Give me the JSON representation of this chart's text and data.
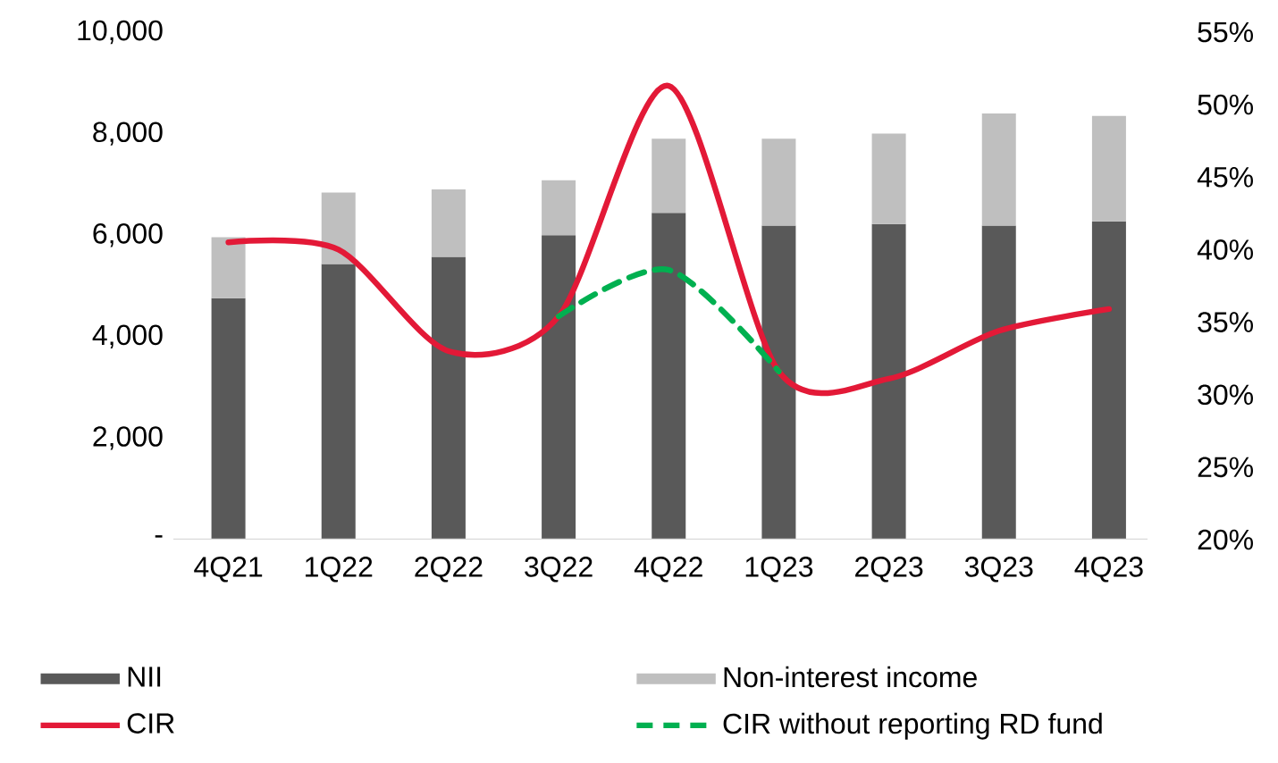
{
  "chart_data": {
    "type": "bar",
    "stacked": true,
    "legend": "bottom",
    "categories": [
      "4Q21",
      "1Q22",
      "2Q22",
      "3Q22",
      "4Q22",
      "1Q23",
      "2Q23",
      "3Q23",
      "4Q23"
    ],
    "series": [
      {
        "name": "NII",
        "type": "bar",
        "color": "#595959",
        "values": [
          4760,
          5430,
          5570,
          6000,
          6440,
          6190,
          6220,
          6190,
          6270
        ]
      },
      {
        "name": "Non-interest income",
        "type": "bar",
        "color": "#bfbfbf",
        "values": [
          1200,
          1410,
          1330,
          1080,
          1460,
          1710,
          1780,
          2210,
          2080
        ]
      },
      {
        "name": "CIR",
        "type": "line",
        "axis": "y2",
        "color": "#e31937",
        "line_style": "solid",
        "values": [
          40.5,
          40.0,
          33.0,
          35.4,
          51.3,
          31.6,
          31.1,
          34.4,
          35.9
        ]
      },
      {
        "name": "CIR without reporting RD fund",
        "type": "line",
        "axis": "y2",
        "color": "#00b050",
        "line_style": "dashed",
        "values": [
          null,
          null,
          null,
          35.4,
          38.6,
          31.6,
          null,
          null,
          null
        ]
      }
    ],
    "ylim": [
      0,
      10000
    ],
    "yticks": [
      {
        "value": 0,
        "label": "-"
      },
      {
        "value": 2000,
        "label": "2,000"
      },
      {
        "value": 4000,
        "label": "4,000"
      },
      {
        "value": 6000,
        "label": "6,000"
      },
      {
        "value": 8000,
        "label": "8,000"
      },
      {
        "value": 10000,
        "label": "10,000"
      }
    ],
    "y2lim": [
      20,
      55
    ],
    "y2ticks": [
      {
        "value": 20,
        "label": "20%"
      },
      {
        "value": 25,
        "label": "25%"
      },
      {
        "value": 30,
        "label": "30%"
      },
      {
        "value": 35,
        "label": "35%"
      },
      {
        "value": 40,
        "label": "40%"
      },
      {
        "value": 45,
        "label": "45%"
      },
      {
        "value": 50,
        "label": "50%"
      },
      {
        "value": 55,
        "label": "55%"
      }
    ]
  }
}
